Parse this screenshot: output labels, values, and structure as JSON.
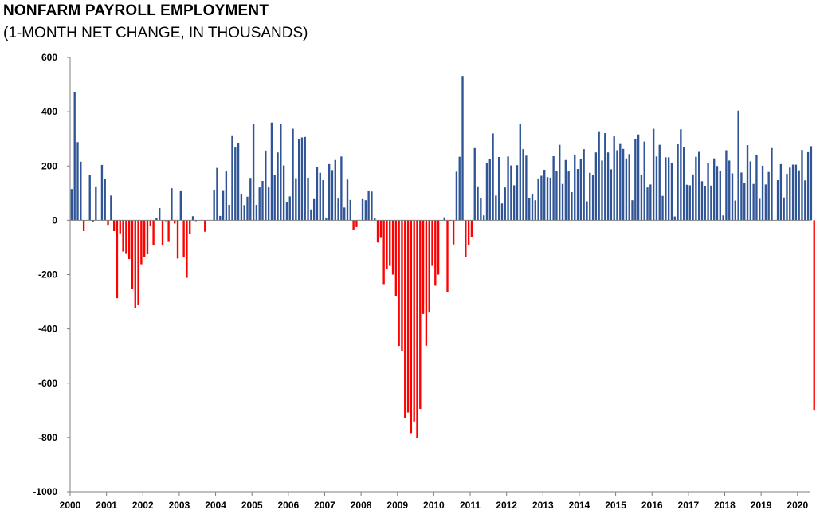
{
  "chart_data": {
    "type": "bar",
    "title": "NONFARM PAYROLL EMPLOYMENT",
    "subtitle": "(1-MONTH NET CHANGE, IN THOUSANDS)",
    "xlabel": "",
    "ylabel": "",
    "ylim": [
      -1000,
      600
    ],
    "yticks": [
      "600",
      "400",
      "200",
      "0",
      "-200",
      "-400",
      "-600",
      "-800",
      "-1000"
    ],
    "ytick_values": [
      600,
      400,
      200,
      0,
      -200,
      -400,
      -600,
      -800,
      -1000
    ],
    "xticks": [
      "2000",
      "2001",
      "2002",
      "2003",
      "2004",
      "2005",
      "2006",
      "2007",
      "2008",
      "2009",
      "2010",
      "2011",
      "2012",
      "2013",
      "2014",
      "2015",
      "2016",
      "2017",
      "2018",
      "2019",
      "2020"
    ],
    "x_start": "2000-01",
    "grid": false,
    "legend": "none",
    "colors": {
      "positive": "#2f5597",
      "negative": "#ff0000",
      "axis": "#7f7f7f"
    },
    "values": [
      115,
      472,
      288,
      216,
      -40,
      0,
      168,
      -6,
      122,
      0,
      204,
      152,
      -17,
      91,
      -40,
      -287,
      -48,
      -115,
      -124,
      -143,
      -253,
      -325,
      -313,
      -162,
      -134,
      -125,
      -22,
      -90,
      9,
      45,
      -92,
      -3,
      -80,
      118,
      -12,
      -141,
      107,
      -135,
      -212,
      -49,
      15,
      -3,
      0,
      0,
      -42,
      0,
      0,
      111,
      193,
      16,
      108,
      180,
      57,
      310,
      268,
      283,
      96,
      56,
      87,
      156,
      354,
      57,
      121,
      145,
      257,
      121,
      360,
      167,
      250,
      355,
      202,
      67,
      88,
      337,
      155,
      300,
      305,
      307,
      157,
      40,
      78,
      195,
      175,
      148,
      10,
      207,
      185,
      222,
      80,
      235,
      47,
      150,
      75,
      -35,
      -25,
      0,
      78,
      74,
      107,
      106,
      10,
      -82,
      -65,
      -235,
      -180,
      -168,
      -200,
      -278,
      -463,
      -481,
      -727,
      -708,
      -784,
      -741,
      -802,
      -695,
      -345,
      -462,
      -340,
      -168,
      -241,
      -200,
      0,
      11,
      -266,
      -2,
      -89,
      179,
      234,
      532,
      -135,
      -90,
      -63,
      266,
      122,
      83,
      18,
      210,
      227,
      320,
      91,
      233,
      62,
      121,
      235,
      202,
      129,
      203,
      354,
      262,
      238,
      81,
      96,
      74,
      154,
      164,
      186,
      159,
      157,
      236,
      182,
      278,
      134,
      222,
      180,
      104,
      239,
      189,
      226,
      262,
      70,
      175,
      166,
      250,
      325,
      220,
      321,
      250,
      188,
      309,
      258,
      281,
      263,
      228,
      244,
      74,
      298,
      316,
      168,
      290,
      121,
      132,
      337,
      235,
      278,
      90,
      232,
      232,
      211,
      14,
      280,
      335,
      271,
      131,
      129,
      169,
      234,
      252,
      144,
      127,
      210,
      128,
      228,
      200,
      183,
      18,
      258,
      220,
      173,
      73,
      404,
      176,
      137,
      277,
      217,
      134,
      242,
      79,
      201,
      132,
      178,
      266,
      0,
      148,
      207,
      84,
      171,
      194,
      205,
      205,
      184,
      259,
      147,
      251,
      273,
      -701
    ]
  }
}
